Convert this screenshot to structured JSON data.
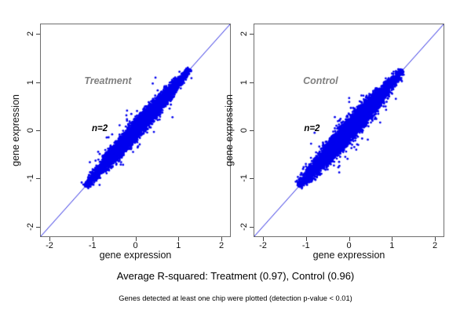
{
  "figure": {
    "background": "#ffffff",
    "caption": "Average R-squared: Treatment (0.97), Control (0.96)",
    "footnote": "Genes detected at least one chip were plotted (detection p-value < 0.01)",
    "axis_color": "#444444",
    "text_color": "#000000"
  },
  "chart_data": [
    {
      "type": "scatter",
      "title": "Treatment",
      "title_color": "#808080",
      "annotation": "n=2",
      "xlabel": "gene expression",
      "ylabel": "gene expression",
      "xlim": [
        -2.2,
        2.2
      ],
      "ylim": [
        -2.2,
        2.2
      ],
      "xticks": [
        -2,
        -1,
        0,
        1,
        2
      ],
      "yticks": [
        -2,
        -1,
        0,
        1,
        2
      ],
      "identity_line": true,
      "r_squared": 0.97,
      "point_color": "#0000ee",
      "line_color": "#2222e0",
      "title_pos": [
        -0.64,
        1.03
      ],
      "annotation_pos": [
        -0.83,
        0.04
      ],
      "cloud": {
        "seed": 42,
        "n_points": 6500,
        "along_mean": 0.05,
        "along_sd": 0.58,
        "along_min": -1.17,
        "along_max": 1.27,
        "perp_sd": 0.07,
        "outlier_fraction": 0.02,
        "outlier_perp_sd": 0.18
      }
    },
    {
      "type": "scatter",
      "title": "Control",
      "title_color": "#808080",
      "annotation": "n=2",
      "xlabel": "gene expression",
      "ylabel": "gene expression",
      "xlim": [
        -2.2,
        2.2
      ],
      "ylim": [
        -2.2,
        2.2
      ],
      "xticks": [
        -2,
        -1,
        0,
        1,
        2
      ],
      "yticks": [
        -2,
        -1,
        0,
        1,
        2
      ],
      "identity_line": true,
      "r_squared": 0.96,
      "point_color": "#0000ee",
      "line_color": "#2222e0",
      "title_pos": [
        -0.66,
        1.03
      ],
      "annotation_pos": [
        -0.86,
        0.04
      ],
      "cloud": {
        "seed": 7,
        "n_points": 6500,
        "along_mean": 0.03,
        "along_sd": 0.58,
        "along_min": -1.17,
        "along_max": 1.25,
        "perp_sd": 0.085,
        "outlier_fraction": 0.022,
        "outlier_perp_sd": 0.2
      }
    }
  ]
}
